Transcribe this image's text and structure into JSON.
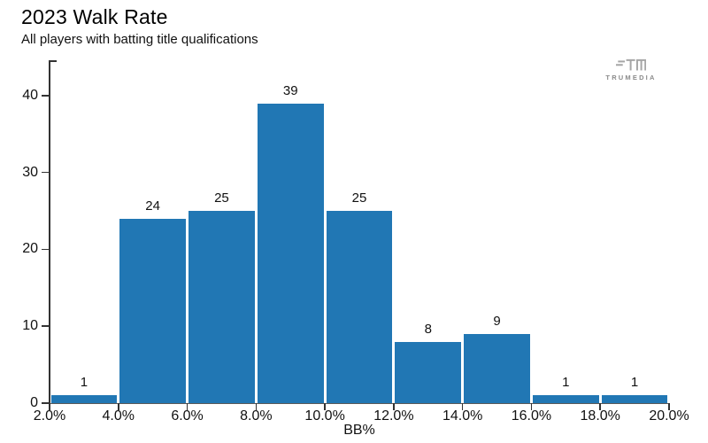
{
  "header": {
    "title": "2023 Walk Rate",
    "subtitle": "All players with batting title qualifications"
  },
  "branding": {
    "logo_text": "TRUMEDIA",
    "logo_icon": "trumedia-tm-icon",
    "logo_color": "#a6a6a6",
    "logo_text_color": "#8b8b8b"
  },
  "chart_data": {
    "type": "bar",
    "subtype": "histogram",
    "title": "2023 Walk Rate",
    "subtitle": "All players with batting title qualifications",
    "xlabel": "BB%",
    "ylabel": "",
    "categories": [
      "2.0-4.0%",
      "4.0-6.0%",
      "6.0-8.0%",
      "8.0-10.0%",
      "10.0-12.0%",
      "12.0-14.0%",
      "14.0-16.0%",
      "16.0-18.0%",
      "18.0-20.0%"
    ],
    "values": [
      1,
      24,
      25,
      39,
      25,
      8,
      9,
      1,
      1
    ],
    "bin_edges_pct": [
      2.0,
      4.0,
      6.0,
      8.0,
      10.0,
      12.0,
      14.0,
      16.0,
      18.0,
      20.0
    ],
    "x_tick_labels": [
      "2.0%",
      "4.0%",
      "6.0%",
      "8.0%",
      "10.0%",
      "12.0%",
      "14.0%",
      "16.0%",
      "18.0%",
      "20.0%"
    ],
    "y_ticks": [
      0,
      10,
      20,
      30,
      40
    ],
    "xlim_pct": [
      2.0,
      20.0
    ],
    "ylim": [
      0,
      44.6
    ],
    "grid": false,
    "legend": "none",
    "bar_color": "#2177b4",
    "axis_color": "#333333"
  }
}
